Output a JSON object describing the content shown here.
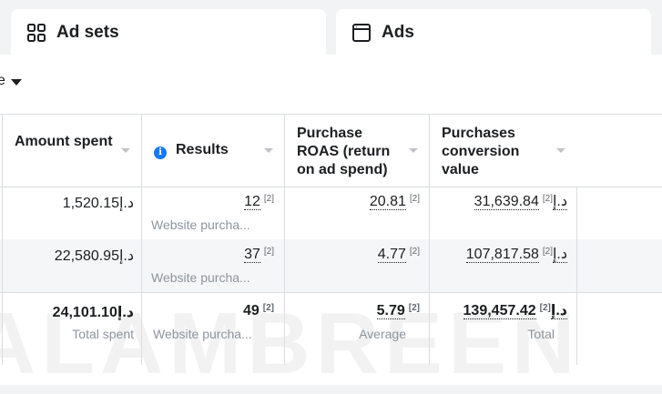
{
  "tabs": [
    {
      "label": "Ad sets",
      "icon": "grid-icon"
    },
    {
      "label": "Ads",
      "icon": "ad-window-icon"
    }
  ],
  "toolbar": {
    "fragment": "e"
  },
  "columns": {
    "amount_spent": "Amount spent",
    "results": "Results",
    "roas": "Purchase ROAS (return on ad spend)",
    "conv_value": "Purchases conversion value"
  },
  "rows": [
    {
      "amount_spent": "1,520.15د.إ",
      "results": "12",
      "results_note": "[2]",
      "results_sub": "Website purcha...",
      "roas": "20.81",
      "roas_note": "[2]",
      "conv_value": "31,639.84د.إ",
      "conv_note": "[2]"
    },
    {
      "amount_spent": "22,580.95د.إ",
      "results": "37",
      "results_note": "[2]",
      "results_sub": "Website purcha...",
      "roas": "4.77",
      "roas_note": "[2]",
      "conv_value": "107,817.58د.إ",
      "conv_note": "[2]"
    }
  ],
  "totals": {
    "amount_spent": "24,101.10د.إ",
    "amount_spent_sub": "Total spent",
    "results": "49",
    "results_note": "[2]",
    "results_sub": "Website purcha...",
    "roas": "5.79",
    "roas_note": "[2]",
    "roas_sub": "Average",
    "conv_value": "139,457.42د.إ",
    "conv_note": "[2]",
    "conv_sub": "Total"
  },
  "watermark": "ALAMBREEN",
  "colors": {
    "accent": "#1877f2",
    "border": "#dadde1",
    "muted": "#8d949e"
  }
}
